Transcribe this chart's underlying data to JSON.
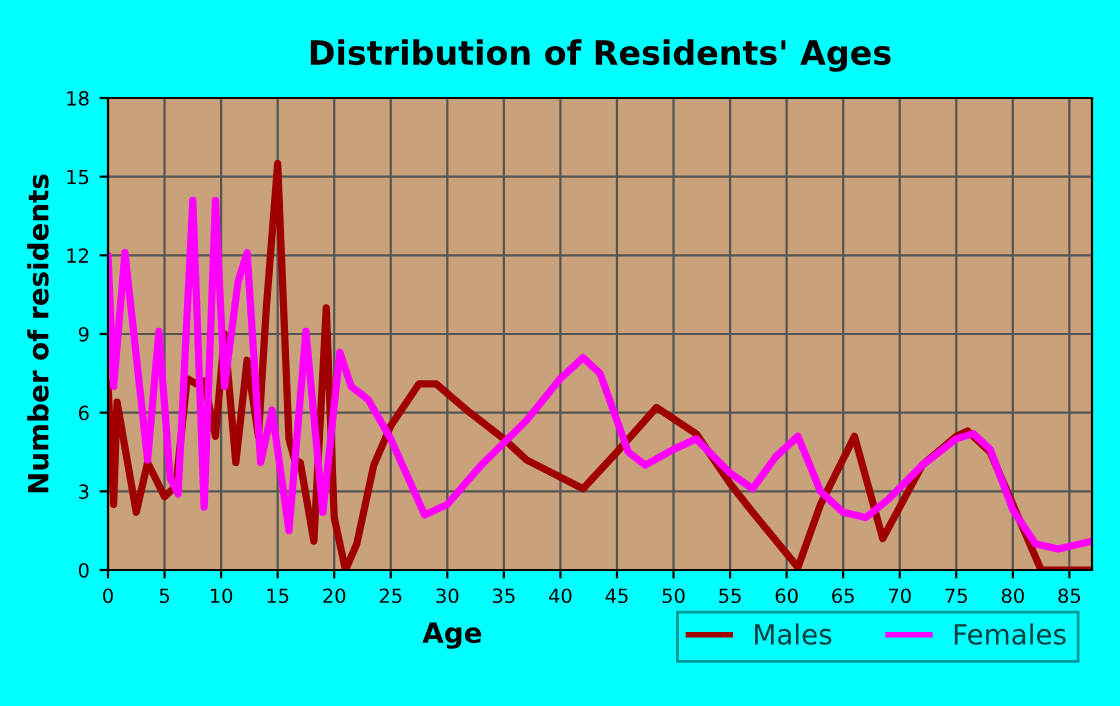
{
  "chart_data": {
    "type": "line",
    "title": "Distribution of Residents' Ages",
    "xlabel": "Age",
    "ylabel": "Number of residents",
    "xlim": [
      0,
      87
    ],
    "xticks": [
      0,
      5,
      10,
      15,
      20,
      25,
      30,
      35,
      40,
      45,
      50,
      55,
      60,
      65,
      70,
      75,
      80,
      85
    ],
    "ylim": [
      0,
      18
    ],
    "yticks": [
      0,
      3,
      6,
      9,
      12,
      15,
      18
    ],
    "grid": true,
    "legend": "bottom right",
    "marker": "none",
    "line_style": "solid",
    "series": [
      {
        "name": "Males",
        "color": "#a00000",
        "x": [
          0,
          0.5,
          0.8,
          2.5,
          3.5,
          5,
          6,
          7,
          7.8,
          8.5,
          9.5,
          10.3,
          11.3,
          12.3,
          13.3,
          14,
          15,
          16,
          16.5,
          17,
          18.2,
          19.3,
          20,
          21,
          22,
          23.5,
          25,
          27.5,
          29,
          32,
          35,
          37,
          42,
          45,
          48.5,
          52,
          55,
          57,
          61,
          63,
          66,
          68.5,
          72,
          75,
          76,
          78,
          82.5,
          87
        ],
        "values": [
          7.1,
          2.5,
          6.4,
          2.2,
          4.1,
          2.8,
          3.2,
          7.3,
          7.1,
          7.2,
          5.1,
          9,
          4.1,
          8,
          5.1,
          10,
          15.5,
          5,
          4.2,
          4.1,
          1.1,
          10,
          2,
          0,
          1,
          4,
          5.5,
          7.1,
          7.1,
          6,
          5,
          4.2,
          3.1,
          4.5,
          6.2,
          5.2,
          3.3,
          2.2,
          0.1,
          2.5,
          5.1,
          1.2,
          4,
          5.1,
          5.3,
          4.5,
          0,
          0
        ]
      },
      {
        "name": "Females",
        "color": "#ff00ff",
        "x": [
          0,
          0.5,
          1.5,
          3.5,
          4.5,
          5.5,
          6.2,
          7.5,
          8.5,
          9.5,
          10.3,
          11.5,
          12.3,
          13.5,
          14.5,
          16,
          17.5,
          19,
          20.5,
          21.5,
          23,
          25,
          28,
          30,
          33,
          37,
          40,
          42,
          43.5,
          46,
          47.5,
          50,
          52,
          55,
          57,
          59,
          61,
          63,
          65,
          67,
          69,
          72,
          75,
          76.5,
          78,
          80,
          82,
          84,
          87
        ],
        "values": [
          12,
          7,
          12.1,
          4.2,
          9.1,
          3.5,
          2.9,
          14.1,
          2.4,
          14.1,
          7,
          11,
          12.1,
          4.1,
          6.1,
          1.5,
          9.1,
          2.2,
          8.3,
          7,
          6.5,
          5,
          2.1,
          2.5,
          4,
          5.7,
          7.3,
          8.1,
          7.5,
          4.5,
          4,
          4.6,
          5,
          3.7,
          3.1,
          4.3,
          5.1,
          3,
          2.2,
          2,
          2.7,
          4,
          5,
          5.2,
          4.6,
          2.3,
          1,
          0.8,
          1.1
        ]
      }
    ]
  }
}
